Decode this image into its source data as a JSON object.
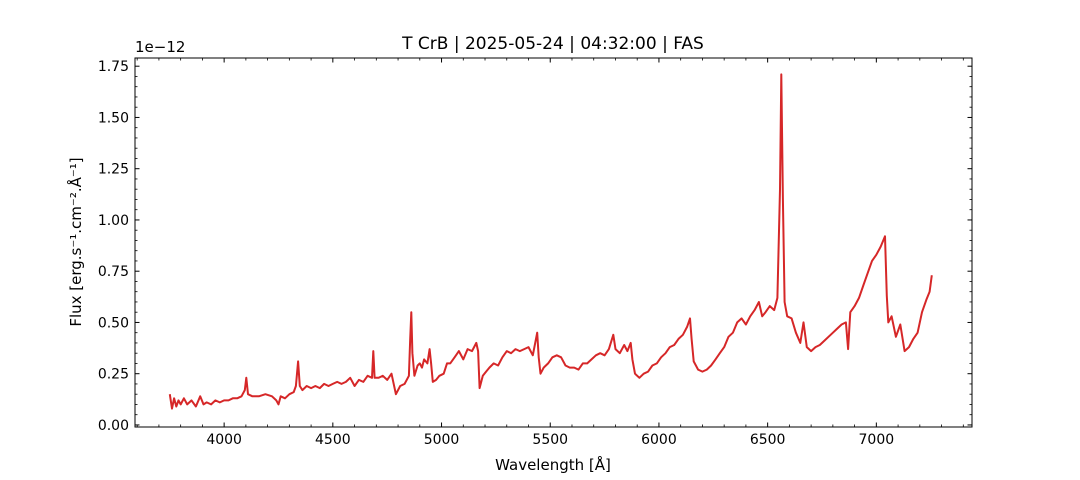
{
  "chart_data": {
    "type": "line",
    "title": "T CrB | 2025-05-24 | 04:32:00 | FAS",
    "xlabel": "Wavelength [Å]",
    "ylabel": "Flux [erg.s⁻¹.cm⁻².Å⁻¹]",
    "y_offset_text": "1e−12",
    "xlim": [
      3590,
      7440
    ],
    "ylim": [
      -0.01,
      1.79
    ],
    "x_ticks": [
      4000,
      4500,
      5000,
      5500,
      6000,
      6500,
      7000
    ],
    "x_tick_labels": [
      "4000",
      "4500",
      "5000",
      "5500",
      "6000",
      "6500",
      "7000"
    ],
    "y_ticks": [
      0.0,
      0.25,
      0.5,
      0.75,
      1.0,
      1.25,
      1.5,
      1.75
    ],
    "y_tick_labels": [
      "0.00",
      "0.25",
      "0.50",
      "0.75",
      "1.00",
      "1.25",
      "1.50",
      "1.75"
    ],
    "grid": false,
    "series": [
      {
        "color": "#d62728",
        "points": [
          [
            3750,
            0.15
          ],
          [
            3760,
            0.08
          ],
          [
            3770,
            0.13
          ],
          [
            3780,
            0.09
          ],
          [
            3790,
            0.12
          ],
          [
            3800,
            0.1
          ],
          [
            3815,
            0.13
          ],
          [
            3830,
            0.1
          ],
          [
            3850,
            0.12
          ],
          [
            3870,
            0.09
          ],
          [
            3890,
            0.14
          ],
          [
            3905,
            0.1
          ],
          [
            3920,
            0.11
          ],
          [
            3940,
            0.1
          ],
          [
            3960,
            0.12
          ],
          [
            3980,
            0.11
          ],
          [
            4000,
            0.12
          ],
          [
            4020,
            0.12
          ],
          [
            4040,
            0.13
          ],
          [
            4060,
            0.13
          ],
          [
            4080,
            0.14
          ],
          [
            4095,
            0.17
          ],
          [
            4102,
            0.23
          ],
          [
            4110,
            0.15
          ],
          [
            4130,
            0.14
          ],
          [
            4160,
            0.14
          ],
          [
            4190,
            0.15
          ],
          [
            4220,
            0.14
          ],
          [
            4240,
            0.12
          ],
          [
            4250,
            0.1
          ],
          [
            4260,
            0.14
          ],
          [
            4280,
            0.13
          ],
          [
            4300,
            0.15
          ],
          [
            4320,
            0.16
          ],
          [
            4330,
            0.19
          ],
          [
            4340,
            0.31
          ],
          [
            4348,
            0.19
          ],
          [
            4360,
            0.17
          ],
          [
            4380,
            0.19
          ],
          [
            4400,
            0.18
          ],
          [
            4420,
            0.19
          ],
          [
            4440,
            0.18
          ],
          [
            4460,
            0.2
          ],
          [
            4480,
            0.19
          ],
          [
            4500,
            0.2
          ],
          [
            4520,
            0.21
          ],
          [
            4540,
            0.2
          ],
          [
            4560,
            0.21
          ],
          [
            4580,
            0.23
          ],
          [
            4600,
            0.19
          ],
          [
            4620,
            0.22
          ],
          [
            4640,
            0.21
          ],
          [
            4660,
            0.24
          ],
          [
            4680,
            0.23
          ],
          [
            4686,
            0.36
          ],
          [
            4692,
            0.23
          ],
          [
            4710,
            0.23
          ],
          [
            4730,
            0.24
          ],
          [
            4750,
            0.22
          ],
          [
            4770,
            0.25
          ],
          [
            4790,
            0.15
          ],
          [
            4810,
            0.19
          ],
          [
            4830,
            0.2
          ],
          [
            4850,
            0.24
          ],
          [
            4856,
            0.42
          ],
          [
            4861,
            0.55
          ],
          [
            4866,
            0.35
          ],
          [
            4875,
            0.24
          ],
          [
            4890,
            0.29
          ],
          [
            4900,
            0.3
          ],
          [
            4910,
            0.28
          ],
          [
            4920,
            0.32
          ],
          [
            4935,
            0.3
          ],
          [
            4945,
            0.37
          ],
          [
            4952,
            0.3
          ],
          [
            4960,
            0.21
          ],
          [
            4975,
            0.22
          ],
          [
            4990,
            0.24
          ],
          [
            5010,
            0.25
          ],
          [
            5025,
            0.3
          ],
          [
            5040,
            0.3
          ],
          [
            5060,
            0.33
          ],
          [
            5080,
            0.36
          ],
          [
            5100,
            0.32
          ],
          [
            5120,
            0.37
          ],
          [
            5140,
            0.36
          ],
          [
            5160,
            0.4
          ],
          [
            5168,
            0.36
          ],
          [
            5175,
            0.18
          ],
          [
            5190,
            0.24
          ],
          [
            5205,
            0.26
          ],
          [
            5220,
            0.28
          ],
          [
            5240,
            0.3
          ],
          [
            5260,
            0.29
          ],
          [
            5280,
            0.33
          ],
          [
            5300,
            0.36
          ],
          [
            5320,
            0.35
          ],
          [
            5340,
            0.37
          ],
          [
            5360,
            0.36
          ],
          [
            5380,
            0.37
          ],
          [
            5400,
            0.38
          ],
          [
            5420,
            0.34
          ],
          [
            5440,
            0.45
          ],
          [
            5447,
            0.33
          ],
          [
            5455,
            0.25
          ],
          [
            5470,
            0.28
          ],
          [
            5490,
            0.3
          ],
          [
            5510,
            0.33
          ],
          [
            5530,
            0.34
          ],
          [
            5550,
            0.33
          ],
          [
            5570,
            0.29
          ],
          [
            5590,
            0.28
          ],
          [
            5610,
            0.28
          ],
          [
            5630,
            0.27
          ],
          [
            5650,
            0.3
          ],
          [
            5670,
            0.3
          ],
          [
            5690,
            0.32
          ],
          [
            5710,
            0.34
          ],
          [
            5730,
            0.35
          ],
          [
            5750,
            0.34
          ],
          [
            5770,
            0.37
          ],
          [
            5790,
            0.44
          ],
          [
            5800,
            0.37
          ],
          [
            5820,
            0.35
          ],
          [
            5840,
            0.39
          ],
          [
            5855,
            0.36
          ],
          [
            5870,
            0.4
          ],
          [
            5878,
            0.32
          ],
          [
            5890,
            0.25
          ],
          [
            5910,
            0.23
          ],
          [
            5930,
            0.25
          ],
          [
            5950,
            0.26
          ],
          [
            5970,
            0.29
          ],
          [
            5990,
            0.3
          ],
          [
            6010,
            0.33
          ],
          [
            6030,
            0.35
          ],
          [
            6050,
            0.38
          ],
          [
            6070,
            0.39
          ],
          [
            6090,
            0.42
          ],
          [
            6110,
            0.44
          ],
          [
            6130,
            0.48
          ],
          [
            6143,
            0.52
          ],
          [
            6150,
            0.42
          ],
          [
            6160,
            0.31
          ],
          [
            6180,
            0.27
          ],
          [
            6200,
            0.26
          ],
          [
            6220,
            0.27
          ],
          [
            6240,
            0.29
          ],
          [
            6260,
            0.32
          ],
          [
            6280,
            0.35
          ],
          [
            6300,
            0.38
          ],
          [
            6320,
            0.43
          ],
          [
            6340,
            0.45
          ],
          [
            6360,
            0.5
          ],
          [
            6380,
            0.52
          ],
          [
            6400,
            0.49
          ],
          [
            6420,
            0.53
          ],
          [
            6440,
            0.56
          ],
          [
            6460,
            0.6
          ],
          [
            6475,
            0.53
          ],
          [
            6490,
            0.55
          ],
          [
            6510,
            0.58
          ],
          [
            6530,
            0.56
          ],
          [
            6545,
            0.62
          ],
          [
            6557,
            1.15
          ],
          [
            6563,
            1.71
          ],
          [
            6570,
            1.1
          ],
          [
            6578,
            0.6
          ],
          [
            6590,
            0.53
          ],
          [
            6610,
            0.52
          ],
          [
            6630,
            0.45
          ],
          [
            6650,
            0.4
          ],
          [
            6665,
            0.5
          ],
          [
            6680,
            0.38
          ],
          [
            6700,
            0.36
          ],
          [
            6720,
            0.38
          ],
          [
            6740,
            0.39
          ],
          [
            6760,
            0.41
          ],
          [
            6780,
            0.43
          ],
          [
            6800,
            0.45
          ],
          [
            6820,
            0.47
          ],
          [
            6840,
            0.49
          ],
          [
            6860,
            0.5
          ],
          [
            6870,
            0.37
          ],
          [
            6880,
            0.55
          ],
          [
            6900,
            0.58
          ],
          [
            6920,
            0.62
          ],
          [
            6940,
            0.68
          ],
          [
            6960,
            0.74
          ],
          [
            6980,
            0.8
          ],
          [
            7000,
            0.83
          ],
          [
            7020,
            0.87
          ],
          [
            7040,
            0.92
          ],
          [
            7048,
            0.63
          ],
          [
            7055,
            0.5
          ],
          [
            7070,
            0.53
          ],
          [
            7090,
            0.43
          ],
          [
            7110,
            0.49
          ],
          [
            7130,
            0.36
          ],
          [
            7150,
            0.38
          ],
          [
            7170,
            0.42
          ],
          [
            7190,
            0.45
          ],
          [
            7210,
            0.55
          ],
          [
            7230,
            0.61
          ],
          [
            7245,
            0.65
          ],
          [
            7255,
            0.73
          ]
        ]
      }
    ]
  }
}
